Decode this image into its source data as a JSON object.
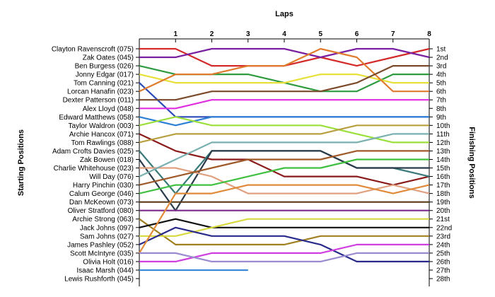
{
  "chart_data": {
    "type": "line",
    "title": "Laps",
    "left_axis_label": "Starting Positions",
    "right_axis_label": "Finishing Positions",
    "laps": [
      0,
      1,
      2,
      3,
      4,
      5,
      6,
      7,
      8
    ],
    "lap_tick_labels": [
      "1",
      "2",
      "3",
      "4",
      "5",
      "6",
      "7",
      "8"
    ],
    "y_range": [
      1,
      28
    ],
    "finishing_labels": [
      "1st",
      "2nd",
      "3rd",
      "4th",
      "5th",
      "6th",
      "7th",
      "8th",
      "9th",
      "10th",
      "11th",
      "12th",
      "13th",
      "14th",
      "15th",
      "16th",
      "17th",
      "18th",
      "19th",
      "20th",
      "21st",
      "22nd",
      "23rd",
      "24th",
      "25th",
      "26th",
      "27th",
      "28th"
    ],
    "series": [
      {
        "name": "Clayton Ravenscroft (075)",
        "color": "#d42a2a",
        "positions": [
          1,
          1,
          3,
          3,
          3,
          2,
          3,
          2,
          1
        ]
      },
      {
        "name": "Zak Oates (045)",
        "color": "#7b1fa2",
        "positions": [
          2,
          2,
          1,
          1,
          1,
          2,
          1,
          1,
          2
        ]
      },
      {
        "name": "Ben Burgess (026)",
        "color": "#2e9b3f",
        "positions": [
          3,
          4,
          4,
          4,
          5,
          6,
          6,
          4,
          4
        ]
      },
      {
        "name": "Jonny Edgar (017)",
        "color": "#e8e03a",
        "positions": [
          4,
          5,
          5,
          5,
          5,
          4,
          4,
          5,
          5
        ]
      },
      {
        "name": "Tom Canning (021)",
        "color": "#2a4bb8",
        "positions": [
          5,
          9,
          9,
          9,
          9,
          9,
          9,
          9,
          9
        ]
      },
      {
        "name": "Lorcan Hanafin (023)",
        "color": "#e07b2e",
        "positions": [
          6,
          4,
          4,
          3,
          3,
          1,
          2,
          6,
          6
        ]
      },
      {
        "name": "Dexter Patterson (011)",
        "color": "#7a4a2a",
        "positions": [
          7,
          7,
          6,
          6,
          6,
          6,
          5,
          3,
          3
        ]
      },
      {
        "name": "Alex Lloyd (048)",
        "color": "#e02fe0",
        "positions": [
          8,
          8,
          7,
          7,
          7,
          7,
          7,
          7,
          7
        ]
      },
      {
        "name": "Edward Matthews (058)",
        "color": "#2d7fd6",
        "positions": [
          9,
          10,
          9,
          9,
          9,
          9,
          9,
          9,
          9
        ]
      },
      {
        "name": "Taylor Waldron (003)",
        "color": "#9be03a",
        "positions": [
          10,
          9,
          10,
          10,
          10,
          10,
          11,
          12,
          12
        ]
      },
      {
        "name": "Archie Hancox (071)",
        "color": "#8b1a1a",
        "positions": [
          11,
          13,
          14,
          14,
          16,
          16,
          16,
          17,
          16
        ]
      },
      {
        "name": "Tom Rawlings (088)",
        "color": "#b8a040",
        "positions": [
          12,
          11,
          11,
          11,
          11,
          11,
          10,
          10,
          10
        ]
      },
      {
        "name": "Adam Crofts Davies (025)",
        "color": "#3a7a7a",
        "positions": [
          13,
          18,
          13,
          13,
          13,
          13,
          15,
          15,
          16
        ]
      },
      {
        "name": "Zak Bowen (018)",
        "color": "#2a3a4a",
        "positions": [
          14,
          20,
          13,
          13,
          13,
          13,
          15,
          15,
          15
        ]
      },
      {
        "name": "Charlie Whitehouse (023)",
        "color": "#e0a080",
        "positions": [
          15,
          15,
          16,
          18,
          18,
          18,
          18,
          17,
          18
        ]
      },
      {
        "name": "Will Day (076)",
        "color": "#7ab0b0",
        "positions": [
          16,
          14,
          12,
          12,
          12,
          12,
          12,
          11,
          11
        ]
      },
      {
        "name": "Harry Pinchin (030)",
        "color": "#a05a2a",
        "positions": [
          17,
          16,
          15,
          14,
          14,
          14,
          13,
          13,
          13
        ]
      },
      {
        "name": "Calum George (046)",
        "color": "#40c040",
        "positions": [
          18,
          17,
          17,
          16,
          15,
          15,
          14,
          14,
          14
        ]
      },
      {
        "name": "Dan McKeown (073)",
        "color": "#5a3a1a",
        "positions": [
          19,
          19,
          19,
          19,
          19,
          19,
          19,
          19,
          19
        ]
      },
      {
        "name": "Oliver Stratford (080)",
        "color": "#7a2a8a",
        "positions": [
          20,
          20,
          20,
          20,
          20,
          20,
          20,
          20,
          20
        ]
      },
      {
        "name": "Archie Strong (063)",
        "color": "#a08020",
        "positions": [
          21,
          24,
          24,
          24,
          24,
          23,
          23,
          23,
          23
        ]
      },
      {
        "name": "Jack Johns (097)",
        "color": "#101010",
        "positions": [
          22,
          21,
          22,
          22,
          22,
          22,
          22,
          22,
          22
        ]
      },
      {
        "name": "Sam Johns (027)",
        "color": "#d8d840",
        "positions": [
          23,
          23,
          22,
          21,
          21,
          21,
          21,
          21,
          21
        ]
      },
      {
        "name": "James Pashley (052)",
        "color": "#2a2a8a",
        "positions": [
          24,
          22,
          23,
          23,
          23,
          24,
          26,
          26,
          26
        ]
      },
      {
        "name": "Scott McIntyre (035)",
        "color": "#e08a3a",
        "positions": [
          25,
          18,
          18,
          17,
          17,
          17,
          17,
          18,
          17
        ]
      },
      {
        "name": "Olivia Holt (016)",
        "color": "#d040e0",
        "positions": [
          26,
          26,
          25,
          25,
          25,
          25,
          24,
          24,
          24
        ]
      },
      {
        "name": "Isaac Marsh (044)",
        "color": "#3a8ad6",
        "positions": [
          27,
          27,
          27,
          27
        ]
      },
      {
        "name": "Lewis Rushforth (045)",
        "color": "#9a8ad0",
        "positions": [
          25,
          25,
          26,
          26,
          26,
          26,
          25,
          25,
          25
        ]
      }
    ]
  }
}
